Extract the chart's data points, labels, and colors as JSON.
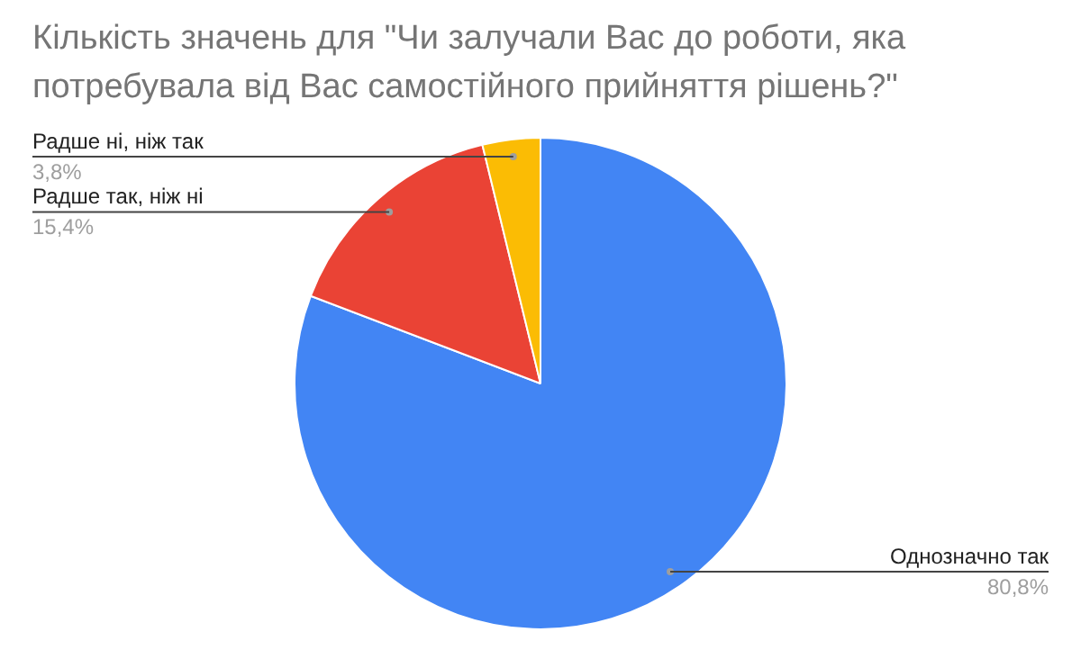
{
  "chart_data": {
    "type": "pie",
    "title": "Кількість значень для \"Чи залучали Вас до роботи, яка потребувала від Вас самостійного прийняття рішень?\"",
    "categories": [
      "Однозначно так",
      "Радше так, ніж ні",
      "Радше ні, ніж так"
    ],
    "values": [
      80.8,
      15.4,
      3.8
    ],
    "colors": [
      "#4285f4",
      "#ea4335",
      "#fbbc04"
    ],
    "value_labels": [
      "80,8%",
      "15,4%",
      "3,8%"
    ],
    "legend": false
  }
}
